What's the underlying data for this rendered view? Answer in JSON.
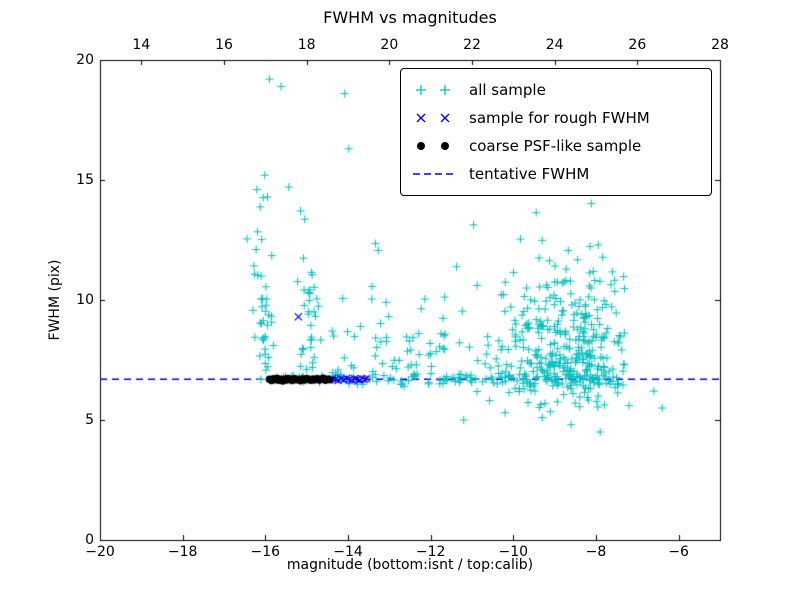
{
  "title": "FWHM vs magnitudes",
  "xlabel": "magnitude (bottom:isnt / top:calib)",
  "ylabel": "FWHM (pix)",
  "axes": {
    "x_bottom": {
      "min": -20,
      "max": -5,
      "ticks": [
        -20,
        -18,
        -16,
        -14,
        -12,
        -10,
        -8,
        -6
      ],
      "tick_labels": [
        "−20",
        "−18",
        "−16",
        "−14",
        "−12",
        "−10",
        "−8",
        "−6"
      ]
    },
    "x_top": {
      "min": 13,
      "max": 28,
      "ticks": [
        14,
        16,
        18,
        20,
        22,
        24,
        26,
        28
      ],
      "tick_labels": [
        "14",
        "16",
        "18",
        "20",
        "22",
        "24",
        "26",
        "28"
      ]
    },
    "y": {
      "min": 0,
      "max": 20,
      "ticks": [
        0,
        5,
        10,
        15,
        20
      ],
      "tick_labels": [
        "0",
        "5",
        "10",
        "15",
        "20"
      ]
    }
  },
  "legend": {
    "position": "upper right",
    "items": [
      {
        "label": "all sample",
        "marker": "plus",
        "color": "#00bfbf"
      },
      {
        "label": "sample for rough FWHM",
        "marker": "x",
        "color": "#0000ff"
      },
      {
        "label": "coarse PSF-like sample",
        "marker": "dot",
        "color": "#000000"
      },
      {
        "label": "tentative FWHM",
        "marker": "dashed-line",
        "color": "#0000ff"
      }
    ]
  },
  "chart_data": {
    "type": "scatter",
    "title": "FWHM vs magnitudes",
    "xlabel": "magnitude (bottom:isnt / top:calib)",
    "ylabel": "FWHM (pix)",
    "xlim": [
      -20,
      -5
    ],
    "ylim": [
      0,
      20
    ],
    "x_top_lim": [
      13,
      28
    ],
    "grid": false,
    "legend_position": "upper right",
    "tentative_fwhm": 6.7,
    "series": [
      {
        "name": "all sample",
        "marker": "plus",
        "color": "#00bfbf",
        "clusters": [
          {
            "desc": "horizontal band along tentative FWHM",
            "n": 110,
            "x": {
              "type": "uniform",
              "min": -16.2,
              "max": -7.6
            },
            "y": {
              "type": "normal",
              "mean": 6.7,
              "sd": 0.12
            }
          },
          {
            "desc": "faint-end main cloud",
            "n": 380,
            "x": {
              "type": "normal",
              "mean": -8.7,
              "sd": 1.0,
              "min": -11.8,
              "max": -7.3
            },
            "y": {
              "type": "skew",
              "base": 6.7,
              "up_scale": 2.4,
              "down_scale": 0.7,
              "down_frac": 0.18,
              "min": 4.3,
              "max": 15.3
            }
          },
          {
            "desc": "bright plume near -16",
            "n": 42,
            "x": {
              "type": "normal",
              "mean": -16.05,
              "sd": 0.12
            },
            "y": {
              "type": "halfup",
              "base": 7.0,
              "scale": 3.6,
              "max": 19.5
            }
          },
          {
            "desc": "plume near -15",
            "n": 34,
            "x": {
              "type": "normal",
              "mean": -14.95,
              "sd": 0.16
            },
            "y": {
              "type": "halfup",
              "base": 7.1,
              "scale": 3.3,
              "max": 19.0
            }
          },
          {
            "desc": "sparse mid-magnitude spread",
            "n": 55,
            "x": {
              "type": "uniform",
              "min": -14.4,
              "max": -11.6
            },
            "y": {
              "type": "halfup",
              "base": 6.8,
              "scale": 2.0,
              "max": 16.5
            }
          }
        ],
        "extra_points": [
          [
            -15.9,
            19.2
          ],
          [
            -15.62,
            18.9
          ],
          [
            -14.08,
            18.6
          ],
          [
            -13.98,
            16.3
          ],
          [
            -6.4,
            5.5
          ],
          [
            -6.6,
            6.2
          ],
          [
            -8.6,
            4.8
          ],
          [
            -9.3,
            5.1
          ],
          [
            -7.9,
            4.5
          ],
          [
            -10.2,
            5.3
          ],
          [
            -11.2,
            5.0
          ],
          [
            -7.2,
            5.6
          ]
        ]
      },
      {
        "name": "sample for rough FWHM",
        "marker": "x",
        "color": "#0000ff",
        "points": [
          [
            -15.2,
            9.3
          ],
          [
            -15.05,
            6.72
          ],
          [
            -14.95,
            6.68
          ],
          [
            -14.85,
            6.7
          ],
          [
            -14.75,
            6.66
          ],
          [
            -14.68,
            6.73
          ],
          [
            -14.6,
            6.69
          ],
          [
            -14.52,
            6.71
          ],
          [
            -14.45,
            6.67
          ],
          [
            -14.38,
            6.72
          ],
          [
            -14.3,
            6.7
          ],
          [
            -14.24,
            6.65
          ],
          [
            -14.17,
            6.71
          ],
          [
            -14.1,
            6.68
          ],
          [
            -14.03,
            6.74
          ],
          [
            -13.97,
            6.69
          ],
          [
            -13.9,
            6.66
          ],
          [
            -13.84,
            6.72
          ],
          [
            -13.78,
            6.7
          ],
          [
            -13.72,
            6.67
          ],
          [
            -13.66,
            6.71
          ],
          [
            -13.6,
            6.69
          ],
          [
            -13.55,
            6.73
          ]
        ]
      },
      {
        "name": "coarse PSF-like sample",
        "marker": "dot",
        "color": "#000000",
        "points": [
          [
            -15.9,
            6.7
          ],
          [
            -15.85,
            6.65
          ],
          [
            -15.8,
            6.72
          ],
          [
            -15.78,
            6.68
          ],
          [
            -15.72,
            6.74
          ],
          [
            -15.68,
            6.66
          ],
          [
            -15.62,
            6.7
          ],
          [
            -15.58,
            6.63
          ],
          [
            -15.52,
            6.71
          ],
          [
            -15.48,
            6.67
          ],
          [
            -15.45,
            6.73
          ],
          [
            -15.4,
            6.69
          ],
          [
            -15.35,
            6.65
          ],
          [
            -15.3,
            6.72
          ],
          [
            -15.25,
            6.68
          ],
          [
            -15.2,
            6.7
          ],
          [
            -15.15,
            6.64
          ],
          [
            -15.1,
            6.71
          ],
          [
            -15.05,
            6.67
          ],
          [
            -15.0,
            6.73
          ],
          [
            -14.95,
            6.69
          ],
          [
            -14.9,
            6.66
          ],
          [
            -14.85,
            6.71
          ],
          [
            -14.8,
            6.68
          ],
          [
            -14.75,
            6.72
          ],
          [
            -14.7,
            6.67
          ],
          [
            -14.65,
            6.7
          ],
          [
            -14.6,
            6.74
          ],
          [
            -14.55,
            6.66
          ],
          [
            -14.5,
            6.7
          ],
          [
            -14.45,
            6.68
          ]
        ]
      },
      {
        "name": "tentative FWHM",
        "type": "hline",
        "y": 6.7,
        "linestyle": "dashed",
        "color": "#0000ff"
      }
    ]
  }
}
